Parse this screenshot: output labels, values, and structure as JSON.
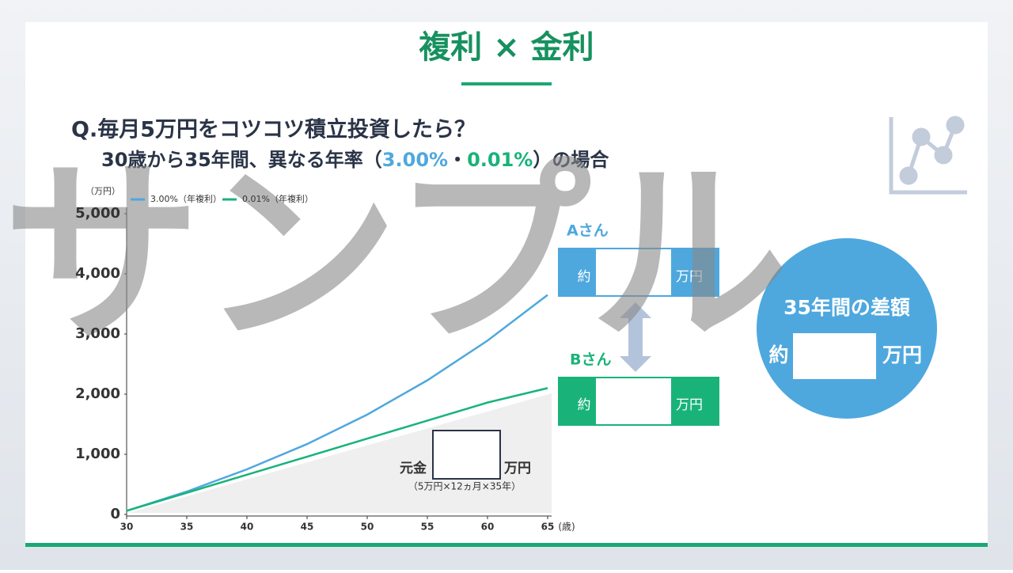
{
  "slide": {
    "title": "複利 × 金利",
    "question": "Q.毎月5万円をコツコツ積立投資したら？",
    "subtitle_parts": [
      "30歳から35年間、異なる年率（",
      "3.00%",
      "・",
      "0.01%",
      "）の場合"
    ],
    "watermark": "サンプル",
    "person_a": "Aさん",
    "person_b": "Bさん",
    "approx": "約",
    "unit_man_yen": "万円",
    "difference_title": "35年間の差額",
    "principal_label": "元金",
    "principal_formula": "（5万円×12ヵ月×35年）"
  },
  "chart_data": {
    "type": "line",
    "y_unit": "（万円）",
    "x_unit": "(歳)",
    "x": [
      30,
      35,
      40,
      45,
      50,
      55,
      60,
      65
    ],
    "series": [
      {
        "name": "3.00%（年複利）",
        "color": "#4ea8de",
        "values": [
          60,
          380,
          750,
          1170,
          1660,
          2230,
          2890,
          3650
        ]
      },
      {
        "name": "0.01%（年複利）",
        "color": "#19b37a",
        "values": [
          60,
          360,
          660,
          960,
          1260,
          1560,
          1860,
          2100
        ]
      }
    ],
    "xlim": [
      30,
      65
    ],
    "ylim": [
      0,
      5000
    ],
    "xticks": [
      30,
      35,
      40,
      45,
      50,
      55,
      60,
      65
    ],
    "yticks": [
      0,
      {
        "value": 1000,
        "label": "1,000"
      },
      {
        "value": 2000,
        "label": "2,000"
      },
      {
        "value": 3000,
        "label": "3,000"
      },
      {
        "value": 4000,
        "label": "4,000"
      },
      {
        "value": 5000,
        "label": "5,000"
      }
    ]
  }
}
